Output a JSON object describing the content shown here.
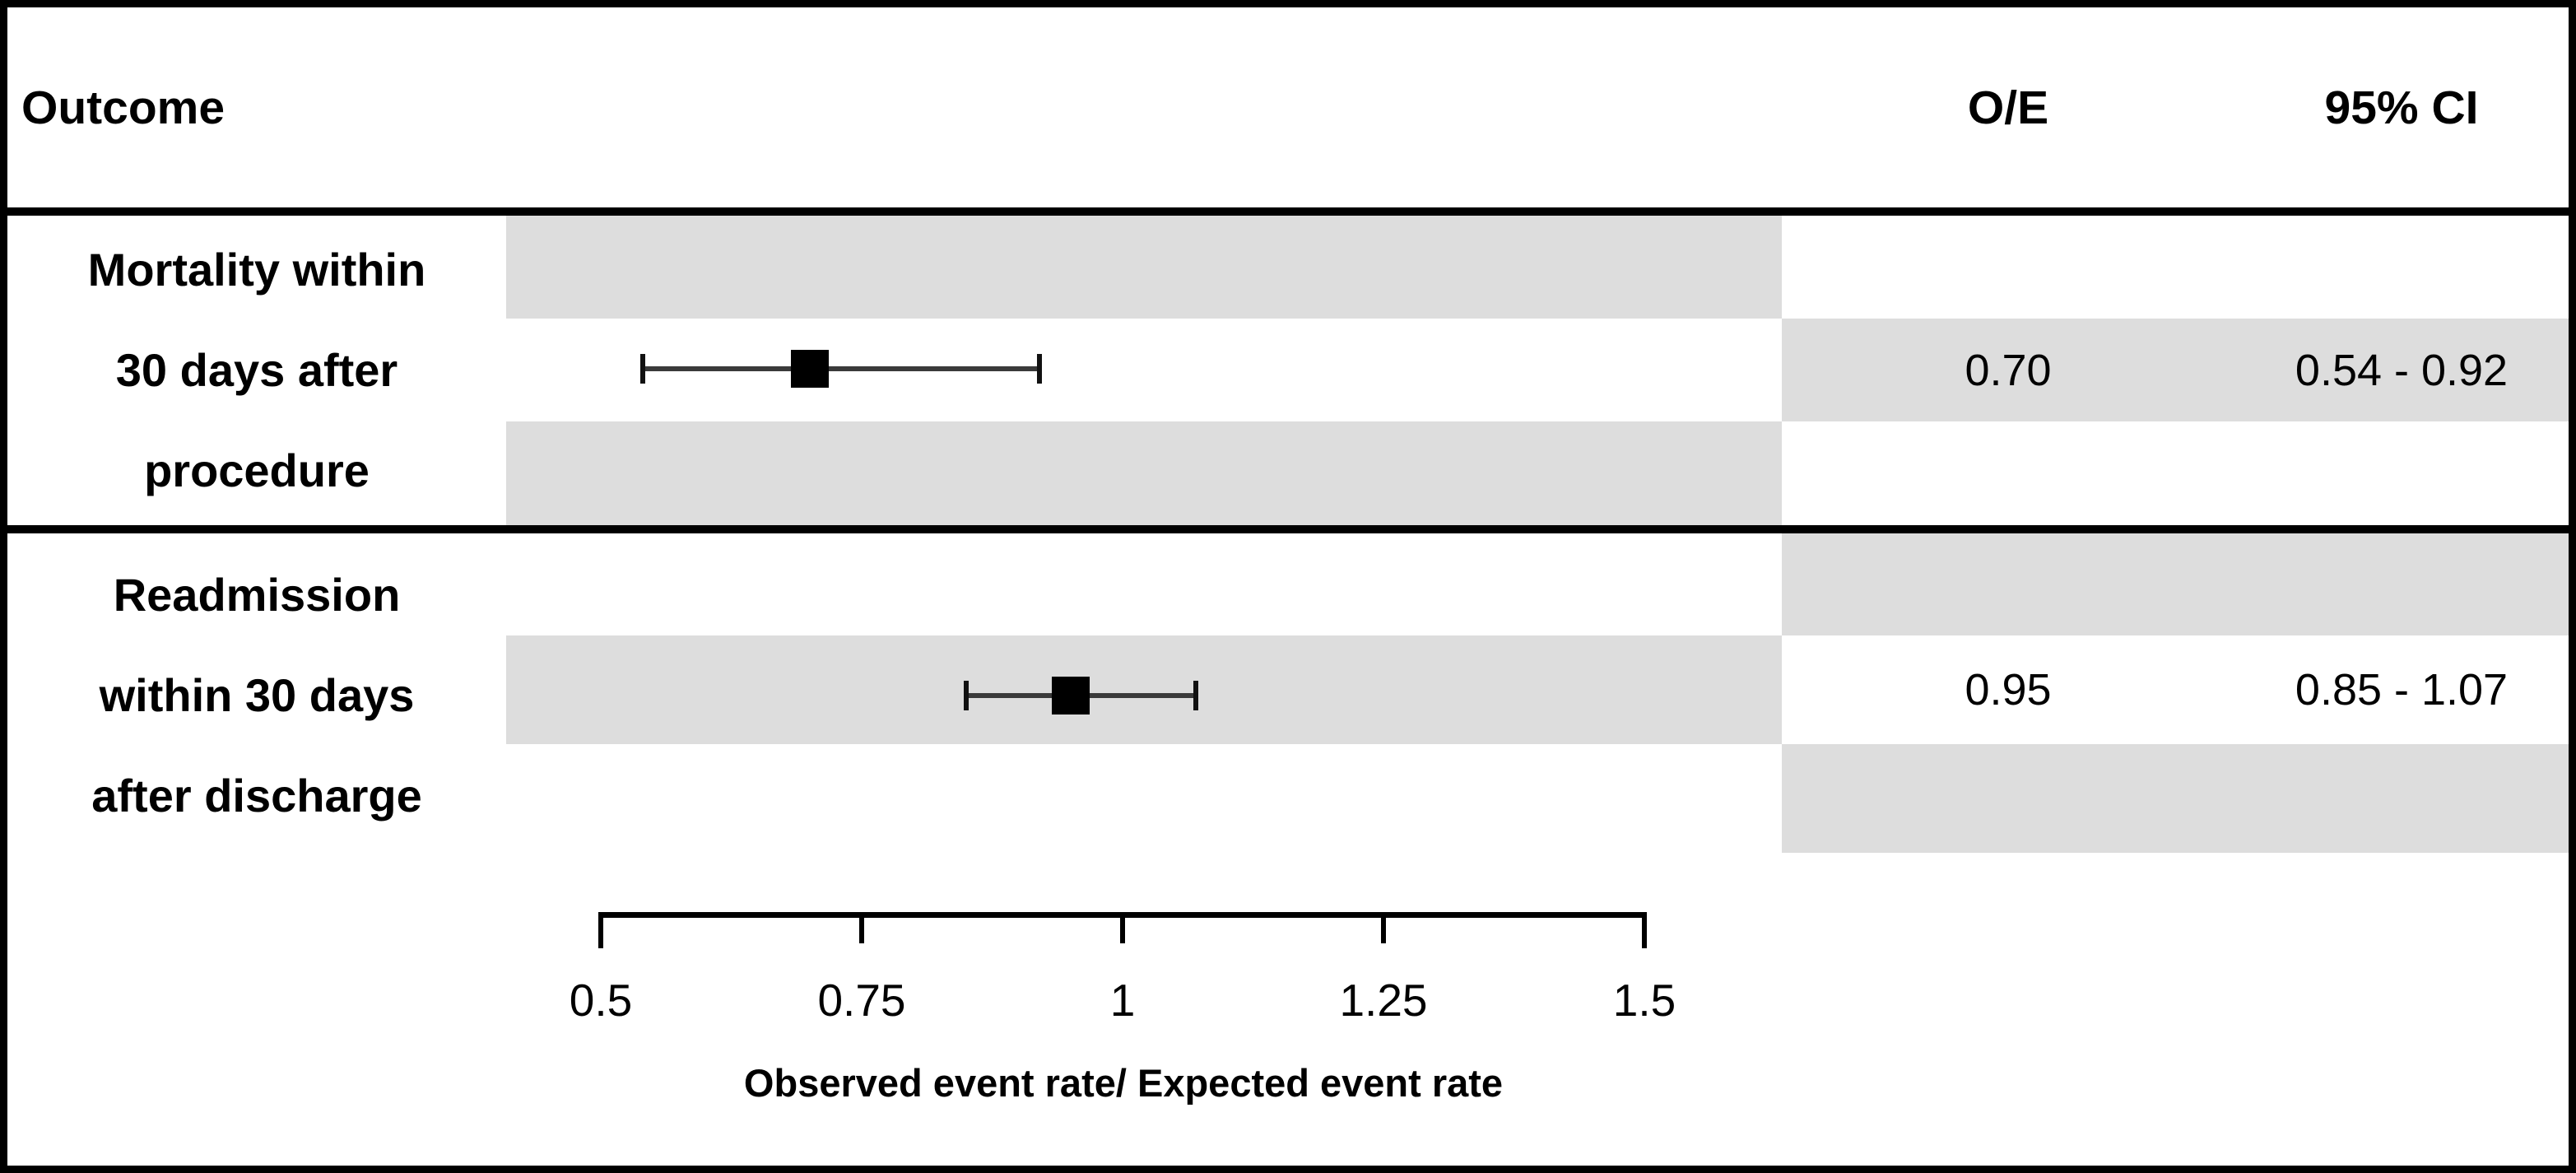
{
  "figure": {
    "columns": {
      "outcome": "Outcome",
      "oe": "O/E",
      "ci": "95% CI"
    }
  },
  "chart_data": {
    "type": "forest",
    "title": "",
    "xlabel": "Observed event rate/ Expected event rate",
    "axis": {
      "min": 0.5,
      "max": 1.5,
      "ticks": [
        0.5,
        0.75,
        1,
        1.25,
        1.5
      ],
      "tick_labels": [
        "0.5",
        "0.75",
        "1",
        "1.25",
        "1.5"
      ],
      "grid": false
    },
    "rows": [
      {
        "outcome": "Mortality within 30 days after procedure",
        "outcome_lines": [
          "Mortality within",
          "30 days after",
          "procedure"
        ],
        "oe": 0.7,
        "oe_label": "0.70",
        "ci_low": 0.54,
        "ci_high": 0.92,
        "ci_label": "0.54 - 0.92"
      },
      {
        "outcome": "Readmission within 30 days after discharge",
        "outcome_lines": [
          "Readmission",
          "within 30 days",
          "after discharge"
        ],
        "oe": 0.95,
        "oe_label": "0.95",
        "ci_low": 0.85,
        "ci_high": 1.07,
        "ci_label": "0.85 - 1.07"
      }
    ]
  },
  "colors": {
    "band_gray": "#dddddd",
    "border_black": "#000000",
    "ci_line_gray": "#3a3a3a",
    "marker_black": "#000000"
  }
}
